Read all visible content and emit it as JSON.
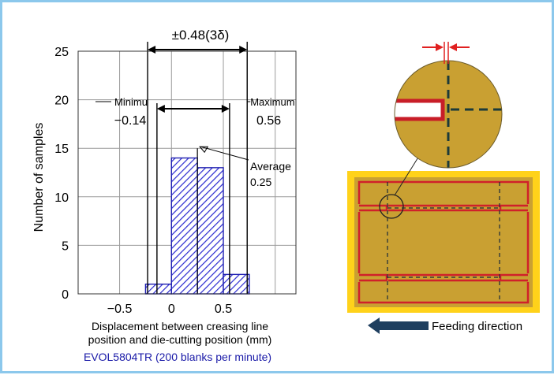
{
  "colors": {
    "frame": "#8cc8ec",
    "bar_stroke": "#1f1fb0",
    "bar_hatch": "#2a2ad0",
    "caption": "#1a1aa8",
    "board": "#c9a032",
    "board_border": "#ffd21a",
    "outline_red": "#d0202a",
    "arrow_red": "#e02020",
    "feed_arrow": "#1f3f5f"
  },
  "chart_data": {
    "type": "bar",
    "title": "",
    "xlabel": "Displacement between creasing line position and die-cutting position (mm)",
    "xlabel_lines": [
      "Displacement between creasing line",
      "position and die-cutting position (mm)"
    ],
    "ylabel": "Number of samples",
    "ylim": [
      0,
      25
    ],
    "xlim": [
      -0.9,
      1.2
    ],
    "y_ticks": [
      "0",
      "5",
      "10",
      "15",
      "20",
      "25"
    ],
    "x_ticks": [
      "−0.5",
      "0",
      "0.5"
    ],
    "bin_width": 0.25,
    "x": [
      -0.125,
      0.125,
      0.375,
      0.625
    ],
    "values": [
      1,
      14,
      13,
      2
    ],
    "grid": true,
    "hatched": true,
    "annotations": {
      "spread_label": "±0.48(3δ)",
      "minimum_label": "Minimu",
      "minimum_value": "−0.14",
      "minimum_x": -0.23,
      "maximum_label": "Maximum",
      "maximum_value": "0.56",
      "maximum_x": 0.73,
      "inner_left_x": -0.14,
      "inner_right_x": 0.56,
      "average_label": "Average",
      "average_value": "0.25",
      "average_x": 0.25
    },
    "caption": "EVOL5804TR (200 blanks per minute)"
  },
  "diagram": {
    "feeding_label": "Feeding direction"
  }
}
